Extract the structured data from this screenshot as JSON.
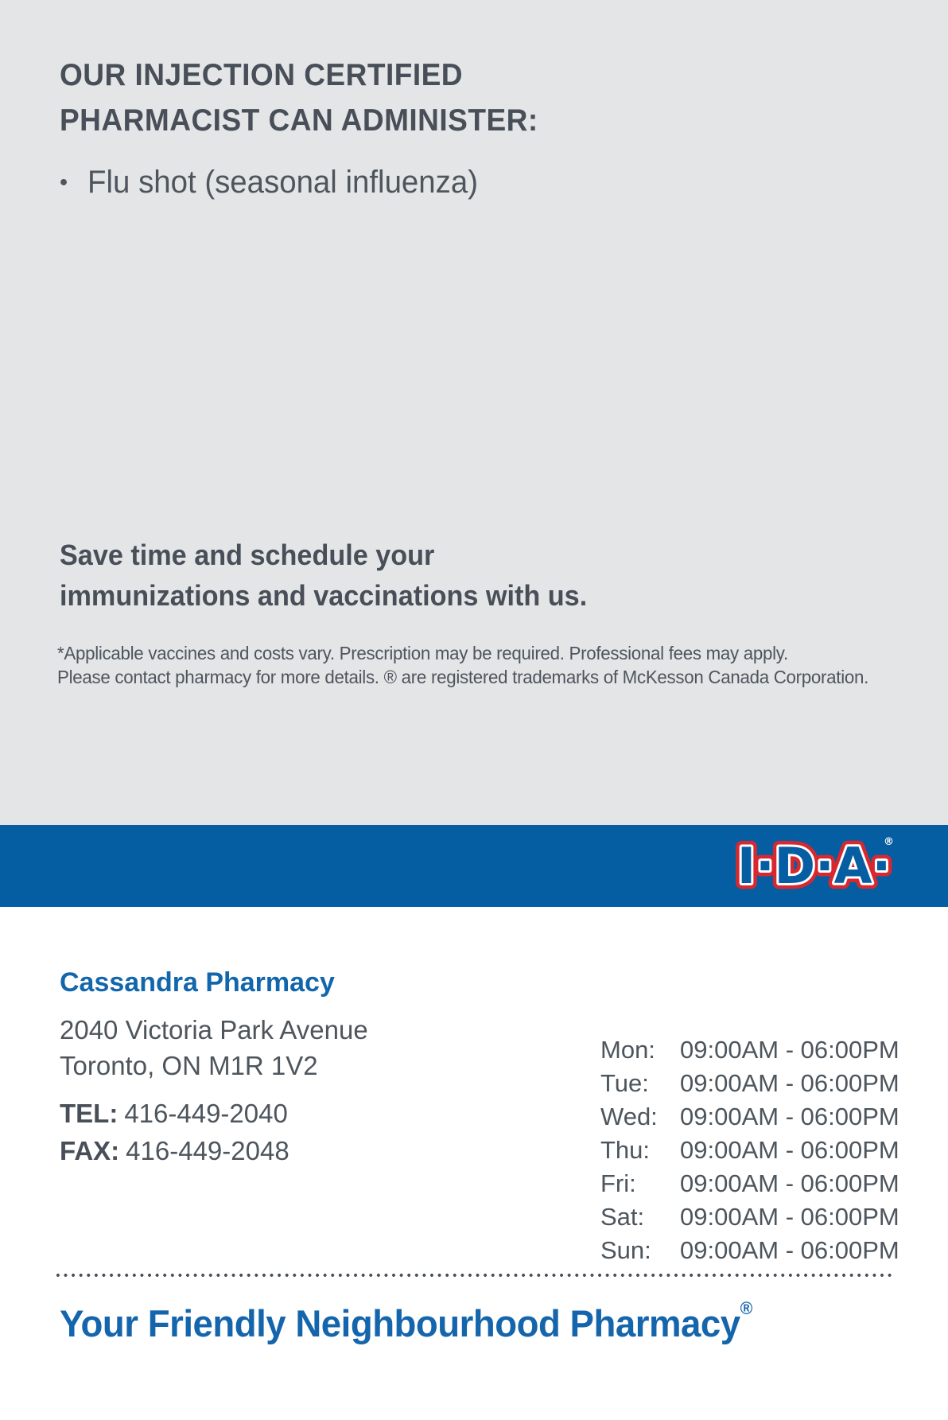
{
  "colors": {
    "gray_bg": "#e4e5e7",
    "band_blue": "#065ea2",
    "text_dark": "#484f58",
    "text_body": "#4d555d",
    "brand_blue": "#1267ac",
    "logo_red": "#d8282f",
    "logo_white": "#ffffff"
  },
  "top": {
    "heading_line1": "OUR INJECTION CERTIFIED",
    "heading_line2": "PHARMACIST CAN ADMINISTER:",
    "bullet_char": "•",
    "bullet_items": [
      "Flu shot (seasonal influenza)"
    ],
    "subheading_line1": "Save time and schedule your",
    "subheading_line2": "immunizations and vaccinations with us.",
    "disclaimer_line1": "*Applicable vaccines and costs vary. Prescription may be required. Professional fees may apply.",
    "disclaimer_line2": "Please contact pharmacy for more details. ® are registered trademarks of McKesson Canada Corporation."
  },
  "band": {
    "logo_text": "I·D·A·",
    "logo_registered": "®"
  },
  "pharmacy": {
    "name": "Cassandra Pharmacy",
    "address_line1": "2040 Victoria Park Avenue",
    "address_line2": "Toronto, ON M1R 1V2",
    "tel_label": "TEL:",
    "tel": "416-449-2040",
    "fax_label": "FAX:",
    "fax": "416-449-2048"
  },
  "hours": [
    {
      "day": "Mon:",
      "time": "09:00AM - 06:00PM"
    },
    {
      "day": "Tue:",
      "time": "09:00AM - 06:00PM"
    },
    {
      "day": "Wed:",
      "time": "09:00AM - 06:00PM"
    },
    {
      "day": "Thu:",
      "time": "09:00AM - 06:00PM"
    },
    {
      "day": "Fri:",
      "time": "09:00AM - 06:00PM"
    },
    {
      "day": "Sat:",
      "time": "09:00AM - 06:00PM"
    },
    {
      "day": "Sun:",
      "time": "09:00AM - 06:00PM"
    }
  ],
  "footer": {
    "tagline": "Your Friendly Neighbourhood Pharmacy",
    "registered": "®"
  }
}
